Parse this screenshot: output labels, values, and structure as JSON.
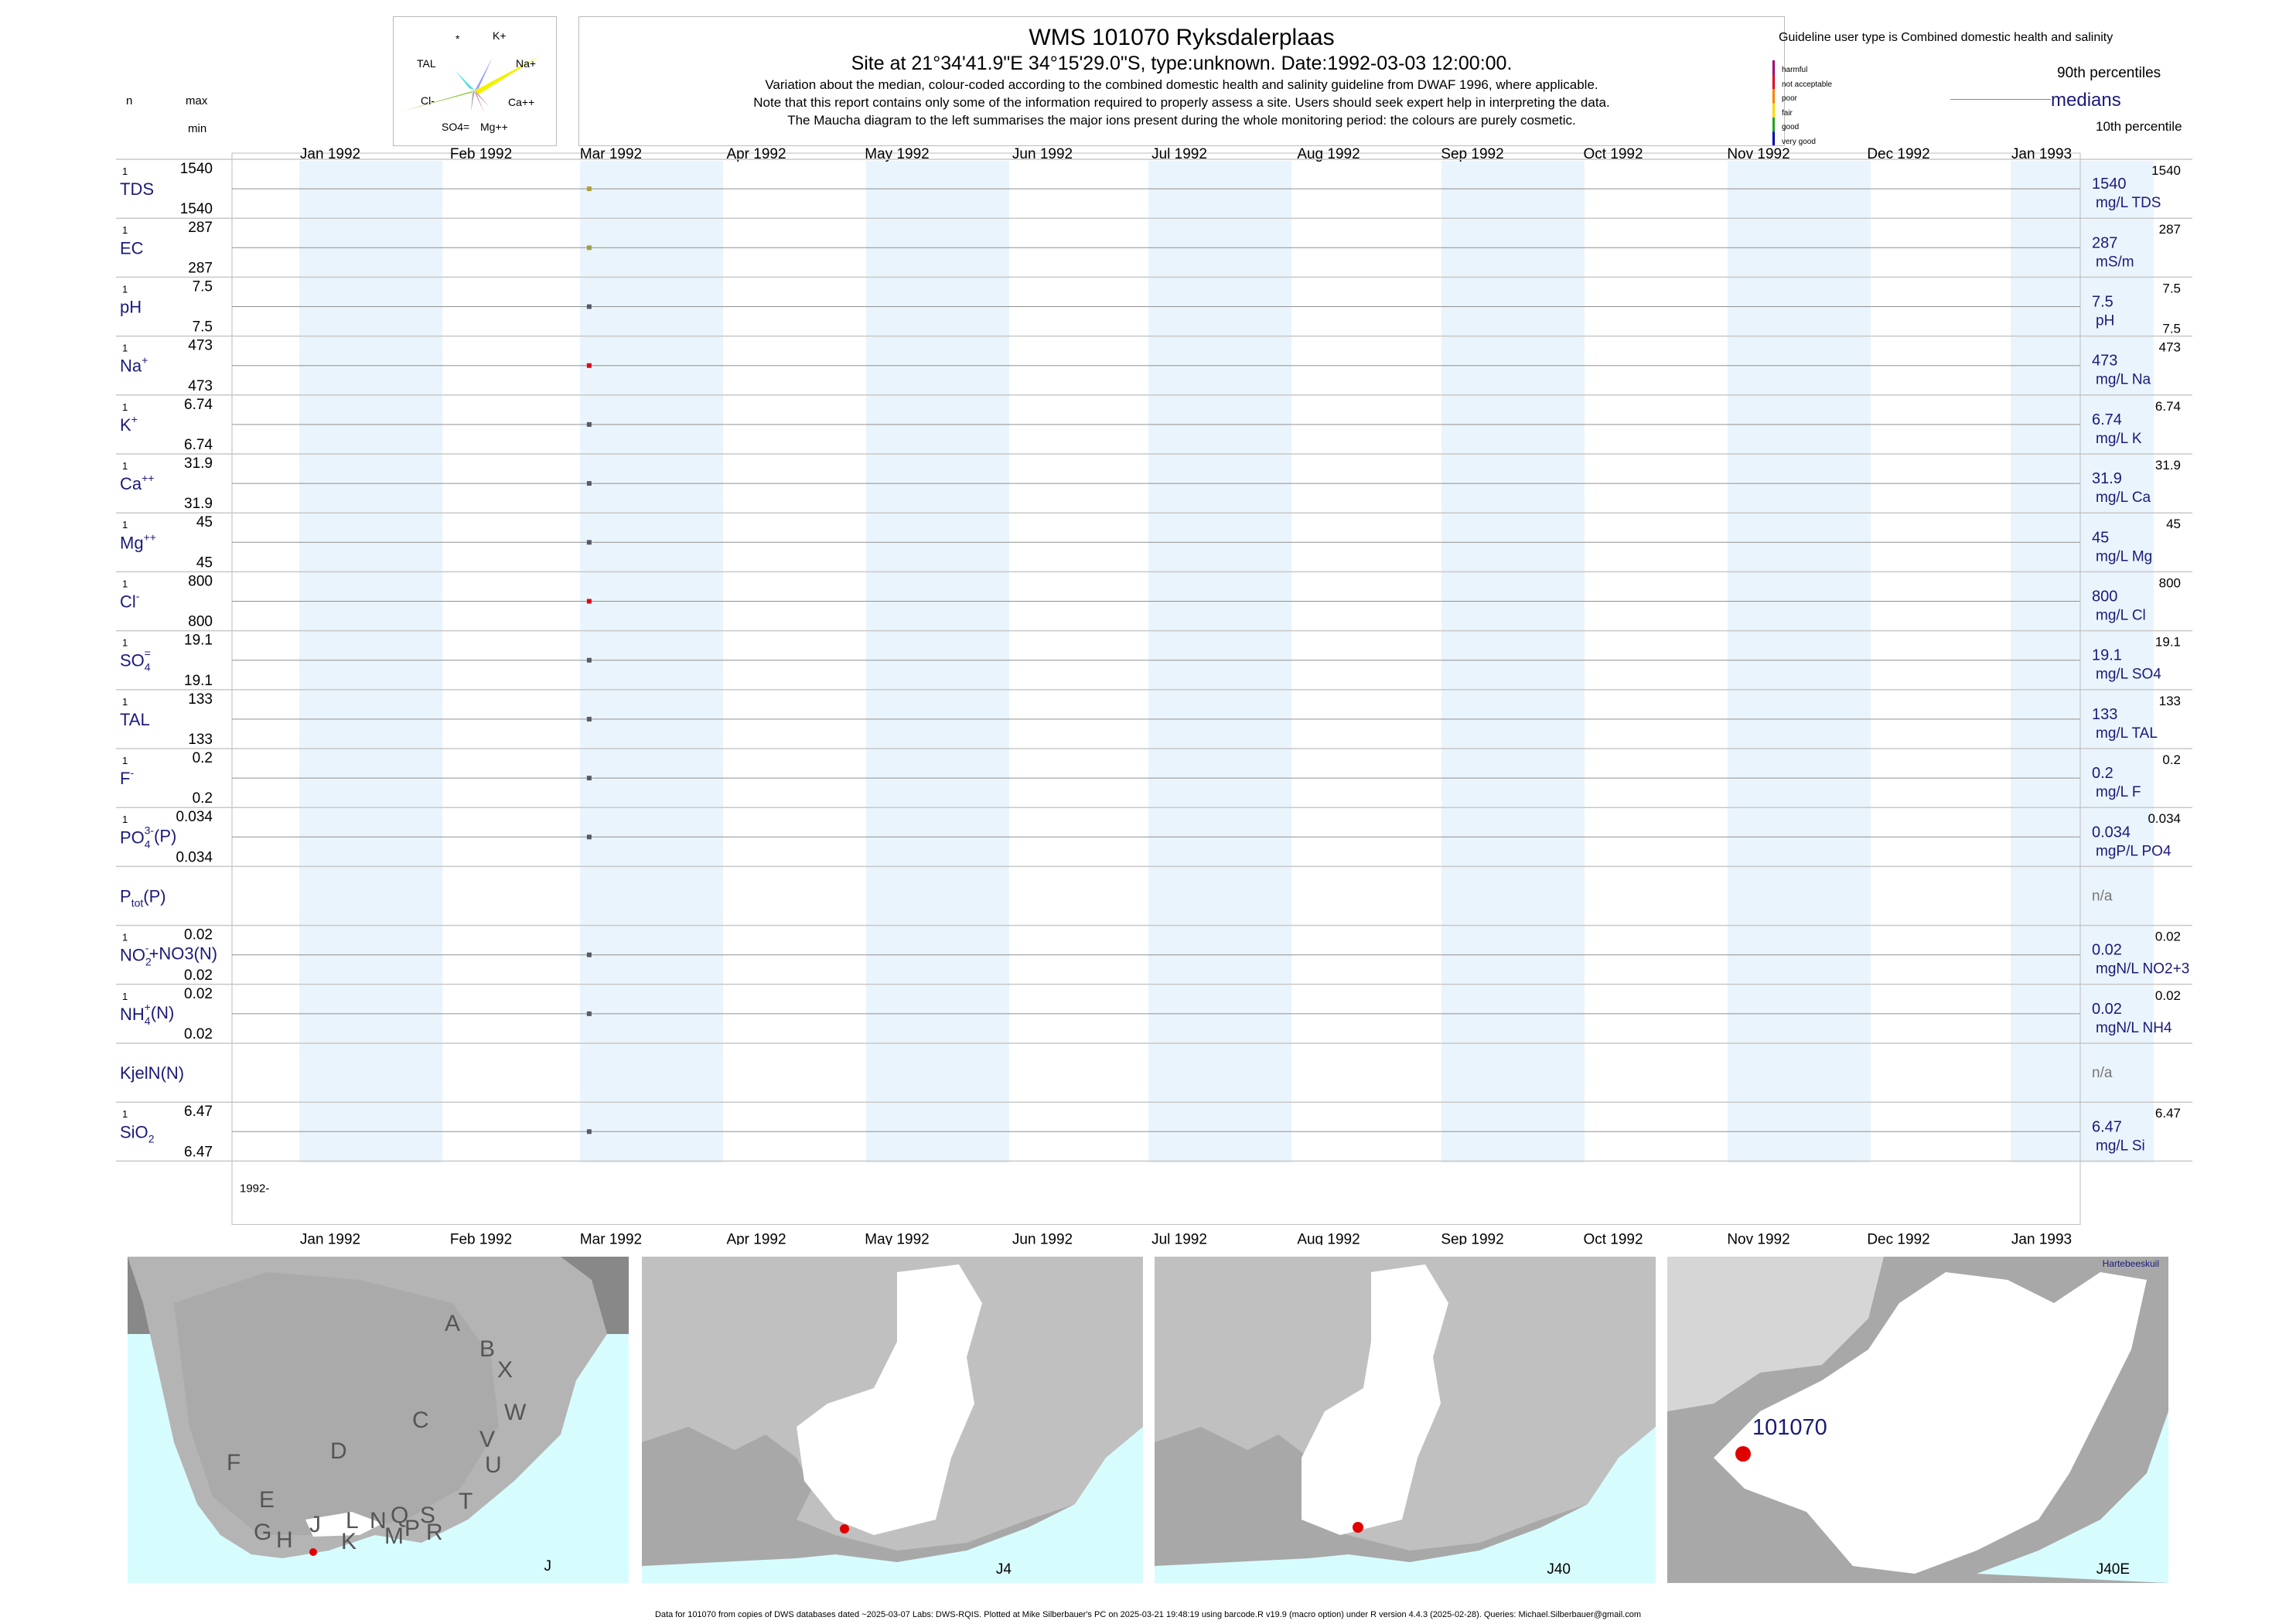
{
  "header": {
    "title": "WMS 101070  Ryksdalerplaas",
    "subtitle": "Site at 21°34'41.9\"E 34°15'29.0\"S, type:unknown. Date:1992-03-03 12:00:00.",
    "notes": [
      "Variation about the median,  colour-coded according to the combined domestic health and salinity guideline from DWAF 1996, where applicable.",
      "Note that this report contains only some of the information required to properly assess a site. Users should seek expert help in interpreting the data.",
      "The Maucha diagram to the left summarises the major ions present during the whole monitoring period: the colours are purely cosmetic."
    ]
  },
  "left_header": {
    "n": "n",
    "max": "max",
    "min": "min"
  },
  "maucha": {
    "labels": [
      "*",
      "K+",
      "TAL",
      "Na+",
      "Cl-",
      "Ca++",
      "SO4=",
      "Mg++"
    ]
  },
  "legend": {
    "guideline_title": "Guideline user type is Combined domestic health and salinity",
    "classes": [
      {
        "label": "harmful",
        "color": "#a0006e"
      },
      {
        "label": "not acceptable",
        "color": "#e0001a"
      },
      {
        "label": "poor",
        "color": "#ff7f00"
      },
      {
        "label": "fair",
        "color": "#ffd700"
      },
      {
        "label": "good",
        "color": "#22a022"
      },
      {
        "label": "very good",
        "color": "#0000aa"
      }
    ],
    "p90": "90th percentiles",
    "medians": "medians",
    "p10": "10th percentile"
  },
  "chart_data": {
    "type": "scatter",
    "x_axis": {
      "months": [
        "Jan 1992",
        "Feb 1992",
        "Mar 1992",
        "Apr 1992",
        "May 1992",
        "Jun 1992",
        "Jul 1992",
        "Aug 1992",
        "Sep 1992",
        "Oct 1992",
        "Nov 1992",
        "Dec 1992",
        "Jan 1993"
      ],
      "year_label": "1992-"
    },
    "sample_date": "1992-03-03",
    "variables": [
      {
        "label": "TDS",
        "sup": "",
        "sub": "",
        "n": "1",
        "max": "1540",
        "min": "1540",
        "value": 1540,
        "right_value": "1540",
        "right_unit": "mg/L TDS",
        "right_p": "1540",
        "p10": "",
        "color": "#b0a030"
      },
      {
        "label": "EC",
        "sup": "",
        "sub": "",
        "n": "1",
        "max": "287",
        "min": "287",
        "value": 287,
        "right_value": "287",
        "right_unit": "mS/m",
        "right_p": "287",
        "p10": "",
        "color": "#a0a040"
      },
      {
        "label": "pH",
        "sup": "",
        "sub": "",
        "n": "1",
        "max": "7.5",
        "min": "7.5",
        "value": 7.5,
        "right_value": "7.5",
        "right_unit": "pH",
        "right_p": "7.5",
        "p10": "7.5",
        "color": "#555a66"
      },
      {
        "label": "Na",
        "sup": "+",
        "sub": "",
        "n": "1",
        "max": "473",
        "min": "473",
        "value": 473,
        "right_value": "473",
        "right_unit": "mg/L Na",
        "right_p": "473",
        "p10": "",
        "color": "#e0001a"
      },
      {
        "label": "K",
        "sup": "+",
        "sub": "",
        "n": "1",
        "max": "6.74",
        "min": "6.74",
        "value": 6.74,
        "right_value": "6.74",
        "right_unit": "mg/L K",
        "right_p": "6.74",
        "p10": "",
        "color": "#555a66"
      },
      {
        "label": "Ca",
        "sup": "++",
        "sub": "",
        "n": "1",
        "max": "31.9",
        "min": "31.9",
        "value": 31.9,
        "right_value": "31.9",
        "right_unit": "mg/L Ca",
        "right_p": "31.9",
        "p10": "",
        "color": "#555a66"
      },
      {
        "label": "Mg",
        "sup": "++",
        "sub": "",
        "n": "1",
        "max": "45",
        "min": "45",
        "value": 45,
        "right_value": "45",
        "right_unit": "mg/L Mg",
        "right_p": "45",
        "p10": "",
        "color": "#555a66"
      },
      {
        "label": "Cl",
        "sup": "-",
        "sub": "",
        "n": "1",
        "max": "800",
        "min": "800",
        "value": 800,
        "right_value": "800",
        "right_unit": "mg/L Cl",
        "right_p": "800",
        "p10": "",
        "color": "#e0001a"
      },
      {
        "label": "SO",
        "sup": "=",
        "sub": "4",
        "n": "1",
        "max": "19.1",
        "min": "19.1",
        "value": 19.1,
        "right_value": "19.1",
        "right_unit": "mg/L SO4",
        "right_p": "19.1",
        "p10": "",
        "color": "#555a66"
      },
      {
        "label": "TAL",
        "sup": "",
        "sub": "",
        "n": "1",
        "max": "133",
        "min": "133",
        "value": 133,
        "right_value": "133",
        "right_unit": "mg/L TAL",
        "right_p": "133",
        "p10": "",
        "color": "#555a66"
      },
      {
        "label": "F",
        "sup": "-",
        "sub": "",
        "n": "1",
        "max": "0.2",
        "min": "0.2",
        "value": 0.2,
        "right_value": "0.2",
        "right_unit": "mg/L F",
        "right_p": "0.2",
        "p10": "",
        "color": "#555a66"
      },
      {
        "label": "PO",
        "sup": "3-",
        "sub": "4",
        "suffix": "(P)",
        "n": "1",
        "max": "0.034",
        "min": "0.034",
        "value": 0.034,
        "right_value": "0.034",
        "right_unit": "mgP/L PO4",
        "right_p": "0.034",
        "p10": "",
        "color": "#555a66"
      },
      {
        "label": "P",
        "sup": "",
        "sub": "tot",
        "suffix": "(P)",
        "n": "",
        "max": "",
        "min": "",
        "value": null,
        "right_value": "n/a",
        "right_unit": "",
        "right_p": "",
        "p10": "",
        "color": "#555a66"
      },
      {
        "label": "NO",
        "sup": "-",
        "sub": "2",
        "suffix": "+NO3(N)",
        "n": "1",
        "max": "0.02",
        "min": "0.02",
        "value": 0.02,
        "right_value": "0.02",
        "right_unit": "mgN/L NO2+3",
        "right_p": "0.02",
        "p10": "",
        "color": "#555a66"
      },
      {
        "label": "NH",
        "sup": "+",
        "sub": "4",
        "suffix": "(N)",
        "n": "1",
        "max": "0.02",
        "min": "0.02",
        "value": 0.02,
        "right_value": "0.02",
        "right_unit": "mgN/L NH4",
        "right_p": "0.02",
        "p10": "",
        "color": "#555a66"
      },
      {
        "label": "KjelN(N)",
        "sup": "",
        "sub": "",
        "n": "",
        "max": "",
        "min": "",
        "value": null,
        "right_value": "n/a",
        "right_unit": "",
        "right_p": "",
        "p10": "",
        "color": "#555a66"
      },
      {
        "label": "SiO",
        "sup": "",
        "sub": "2",
        "n": "1",
        "max": "6.47",
        "min": "6.47",
        "value": 6.47,
        "right_value": "6.47",
        "right_unit": "mg/L Si",
        "right_p": "6.47",
        "p10": "",
        "color": "#555a66"
      }
    ]
  },
  "maps": [
    {
      "caption": "J",
      "region_labels": [
        "A",
        "B",
        "X",
        "W",
        "C",
        "V",
        "U",
        "D",
        "T",
        "F",
        "E",
        "L",
        "N",
        "Q",
        "S",
        "R",
        "M",
        "P",
        "K",
        "G",
        "H",
        "J"
      ]
    },
    {
      "caption": "J4"
    },
    {
      "caption": "J40"
    },
    {
      "caption": "J40E",
      "site_label": "101070",
      "place_label": "Hartebeeskuil"
    }
  ],
  "footer": "Data for 101070 from copies of DWS databases dated ~2025-03-07 Labs: DWS-RQIS. Plotted at Mike Silberbauer's PC on 2025-03-21 19:48:19 using barcode.R v19.9 (macro option) under R version 4.4.3 (2025-02-28). Queries: Michael.Silberbauer@gmail.com",
  "colors": {
    "band": "#eaf4fc",
    "label_blue": "#1a1a7a",
    "sea": "#d7fcfe",
    "land": "#c0c0c0",
    "dark_land": "#888888",
    "site": "#e00000"
  }
}
